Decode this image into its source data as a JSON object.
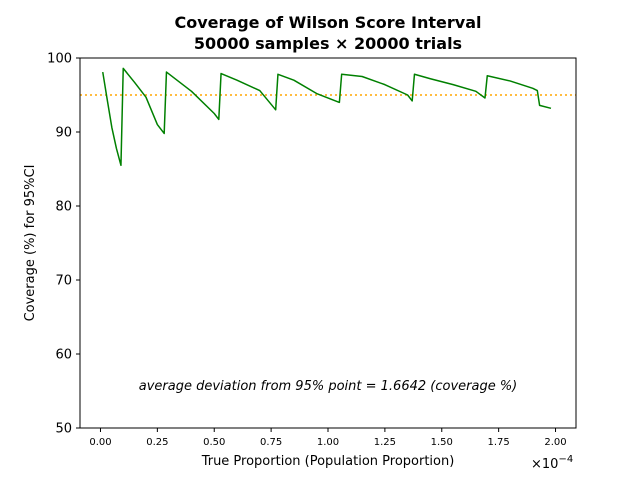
{
  "chart_data": {
    "type": "line",
    "title_line1": "Coverage of Wilson Score Interval",
    "title_line2": "50000 samples × 20000 trials",
    "xlabel": "True Proportion (Population Proportion)",
    "ylabel": "Coverage (%) for 95%CI",
    "x_offset_label": "×10",
    "x_offset_exponent": "−4",
    "xlim": [
      -0.09,
      2.09
    ],
    "ylim": [
      50,
      100
    ],
    "xticks": [
      0.0,
      0.25,
      0.5,
      0.75,
      1.0,
      1.25,
      1.5,
      1.75,
      2.0
    ],
    "xtick_labels": [
      "0.00",
      "0.25",
      "0.50",
      "0.75",
      "1.00",
      "1.25",
      "1.50",
      "1.75",
      "2.00"
    ],
    "yticks": [
      50,
      60,
      70,
      80,
      90,
      100
    ],
    "ytick_labels": [
      "50",
      "60",
      "70",
      "80",
      "90",
      "100"
    ],
    "reference_line": {
      "y": 95,
      "style": "dotted",
      "color": "#ffa500"
    },
    "annotation": "average deviation from 95% point = 1.6642 (coverage %)",
    "series": [
      {
        "color": "#008000",
        "x": [
          0.01,
          0.03,
          0.05,
          0.07,
          0.09,
          0.1,
          0.15,
          0.2,
          0.25,
          0.28,
          0.29,
          0.4,
          0.5,
          0.52,
          0.53,
          0.6,
          0.7,
          0.77,
          0.78,
          0.85,
          0.95,
          1.05,
          1.06,
          1.15,
          1.25,
          1.35,
          1.37,
          1.38,
          1.45,
          1.55,
          1.65,
          1.69,
          1.7,
          1.8,
          1.9,
          1.92,
          1.93,
          1.98
        ],
        "y": [
          98.1,
          94.3,
          90.6,
          87.8,
          85.5,
          98.6,
          96.7,
          94.7,
          91.0,
          89.8,
          98.1,
          95.5,
          92.5,
          91.7,
          97.9,
          97.0,
          95.6,
          93.0,
          97.8,
          97.0,
          95.2,
          94.0,
          97.8,
          97.5,
          96.4,
          95.0,
          94.2,
          97.8,
          97.2,
          96.4,
          95.5,
          94.6,
          97.6,
          96.9,
          95.9,
          95.6,
          93.6,
          93.2
        ]
      }
    ]
  }
}
